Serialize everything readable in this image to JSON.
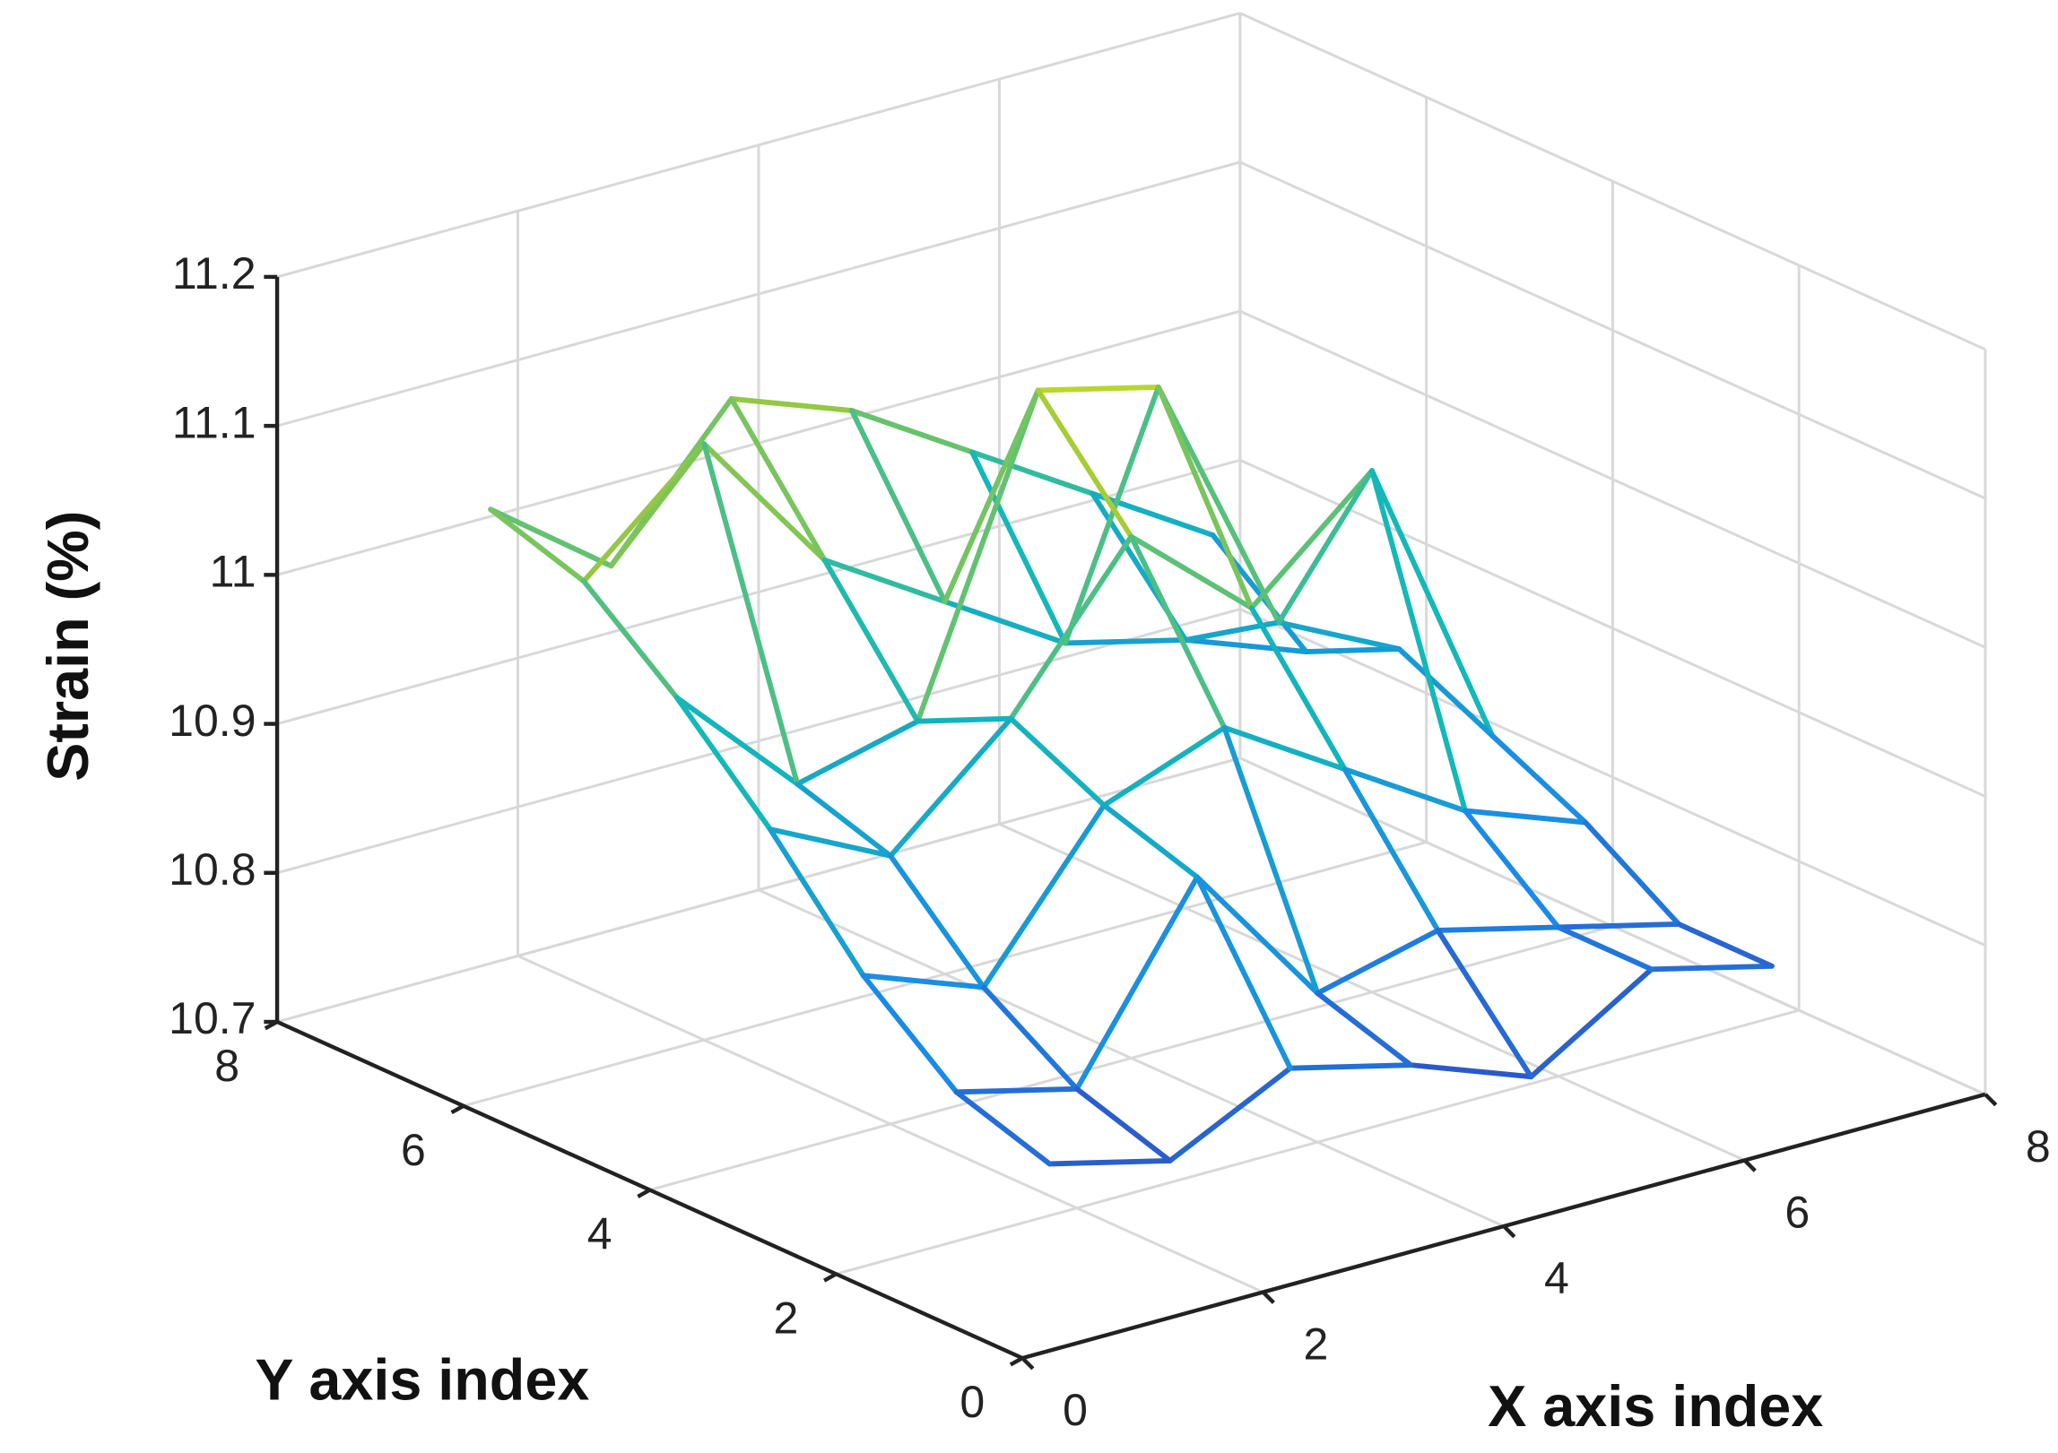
{
  "chart_data": {
    "type": "mesh3d",
    "xlabel": "X axis index",
    "ylabel": "Y axis index",
    "zlabel": "Strain (%)",
    "x": [
      1,
      2,
      3,
      4,
      5,
      6,
      7
    ],
    "y": [
      1,
      2,
      3,
      4,
      5,
      6,
      7
    ],
    "z": [
      [
        10.78,
        10.76,
        10.8,
        10.78,
        10.75,
        10.8,
        10.78
      ],
      [
        10.8,
        10.78,
        10.9,
        10.8,
        10.82,
        10.8,
        10.78
      ],
      [
        10.85,
        10.82,
        10.92,
        10.95,
        10.9,
        10.85,
        10.82
      ],
      [
        10.92,
        10.88,
        10.95,
        11.05,
        10.98,
        11.05,
        10.85
      ],
      [
        10.98,
        10.9,
        10.92,
        11.12,
        11.1,
        10.92,
        10.88
      ],
      [
        11.03,
        11.1,
        11.0,
        10.95,
        10.9,
        10.88,
        10.85
      ],
      [
        11.05,
        10.99,
        11.08,
        11.05,
        11.0,
        10.95,
        10.9
      ]
    ],
    "xlim": [
      0,
      8
    ],
    "xticks": [
      0,
      2,
      4,
      6,
      8
    ],
    "ylim": [
      0,
      8
    ],
    "yticks": [
      0,
      2,
      4,
      6,
      8
    ],
    "zlim": [
      10.7,
      11.2
    ],
    "zticks": [
      10.7,
      10.8,
      10.9,
      11,
      11.1,
      11.2
    ],
    "colormap": [
      "#3e26a8",
      "#1a8ae6",
      "#14b8b8",
      "#9fc93a",
      "#f9fb0e"
    ],
    "grid": true
  }
}
